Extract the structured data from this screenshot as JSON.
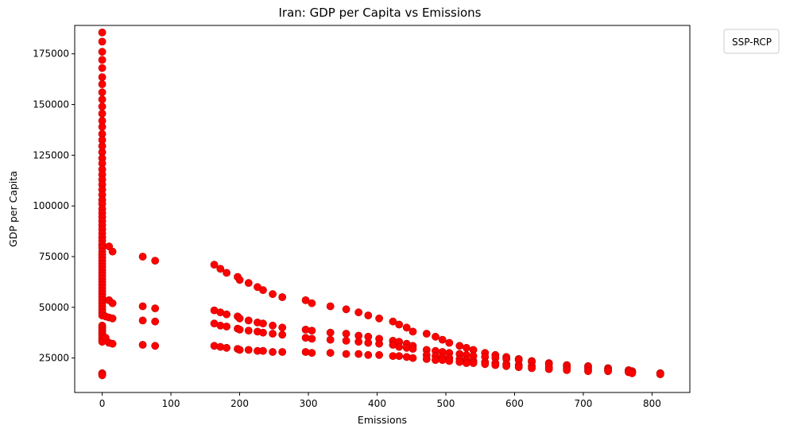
{
  "chart_data": {
    "type": "scatter",
    "title": "Iran: GDP per Capita vs Emissions",
    "xlabel": "Emissions",
    "ylabel": "GDP per Capita",
    "xlim": [
      -40,
      855
    ],
    "ylim": [
      8000,
      189000
    ],
    "x_ticks": [
      0,
      100,
      200,
      300,
      400,
      500,
      600,
      700,
      800
    ],
    "y_ticks": [
      25000,
      50000,
      75000,
      100000,
      125000,
      150000,
      175000
    ],
    "grid": false,
    "legend": {
      "title": "SSP-RCP",
      "placement": "outside-top-right"
    },
    "series": [
      {
        "color": "#ff0000",
        "points": [
          [
            0,
            185500
          ],
          [
            0,
            181000
          ],
          [
            0,
            176000
          ],
          [
            0,
            172000
          ],
          [
            0,
            168000
          ],
          [
            0,
            163500
          ],
          [
            0,
            160000
          ],
          [
            0,
            156000
          ],
          [
            0,
            152500
          ],
          [
            0,
            149000
          ],
          [
            0,
            145500
          ],
          [
            0,
            142000
          ],
          [
            0,
            139000
          ],
          [
            0,
            135500
          ],
          [
            0,
            132500
          ],
          [
            0,
            129500
          ],
          [
            0,
            126500
          ],
          [
            0,
            123500
          ],
          [
            0,
            121000
          ],
          [
            0,
            118000
          ],
          [
            0,
            115500
          ],
          [
            0,
            113000
          ],
          [
            0,
            110500
          ],
          [
            0,
            108000
          ],
          [
            0,
            105500
          ],
          [
            0,
            103000
          ],
          [
            0,
            101000
          ],
          [
            0,
            98500
          ],
          [
            0,
            96500
          ],
          [
            0,
            94500
          ],
          [
            0,
            92500
          ],
          [
            0,
            90500
          ],
          [
            0,
            88500
          ],
          [
            0,
            86500
          ],
          [
            0,
            84500
          ],
          [
            0,
            83000
          ],
          [
            0,
            81000
          ],
          [
            0,
            79500
          ],
          [
            0,
            77500
          ],
          [
            0,
            76000
          ],
          [
            0,
            74500
          ],
          [
            0,
            73000
          ],
          [
            0,
            71500
          ],
          [
            0,
            70000
          ],
          [
            0,
            68500
          ],
          [
            0,
            67000
          ],
          [
            0,
            65500
          ],
          [
            0,
            64000
          ],
          [
            0,
            62500
          ],
          [
            0,
            61000
          ],
          [
            0,
            59500
          ],
          [
            0,
            58000
          ],
          [
            0,
            56500
          ],
          [
            0,
            55000
          ],
          [
            0,
            53500
          ],
          [
            0,
            52000
          ],
          [
            0,
            50500
          ],
          [
            0,
            49000
          ],
          [
            0,
            47500
          ],
          [
            0,
            46000
          ],
          [
            0,
            41000
          ],
          [
            0,
            40000
          ],
          [
            0,
            39000
          ],
          [
            0,
            38000
          ],
          [
            0,
            37000
          ],
          [
            0,
            36000
          ],
          [
            0,
            35000
          ],
          [
            0,
            34000
          ],
          [
            0,
            33000
          ],
          [
            0,
            17500
          ],
          [
            0,
            17000
          ],
          [
            0,
            16500
          ],
          [
            5,
            35000
          ],
          [
            5,
            45500
          ],
          [
            10,
            80000
          ],
          [
            10,
            53500
          ],
          [
            10,
            45000
          ],
          [
            10,
            32500
          ],
          [
            15,
            77500
          ],
          [
            15,
            52000
          ],
          [
            15,
            44500
          ],
          [
            15,
            32000
          ],
          [
            59,
            75000
          ],
          [
            59,
            50500
          ],
          [
            59,
            43500
          ],
          [
            59,
            31500
          ],
          [
            77,
            73000
          ],
          [
            77,
            49500
          ],
          [
            77,
            43000
          ],
          [
            77,
            31000
          ],
          [
            163,
            71000
          ],
          [
            172,
            69000
          ],
          [
            181,
            67000
          ],
          [
            197,
            65000
          ],
          [
            200,
            63500
          ],
          [
            213,
            62000
          ],
          [
            226,
            60000
          ],
          [
            234,
            58500
          ],
          [
            248,
            56500
          ],
          [
            262,
            55000
          ],
          [
            163,
            48500
          ],
          [
            172,
            47500
          ],
          [
            181,
            46500
          ],
          [
            197,
            45500
          ],
          [
            200,
            44500
          ],
          [
            213,
            43500
          ],
          [
            226,
            42500
          ],
          [
            234,
            42000
          ],
          [
            248,
            41000
          ],
          [
            262,
            40000
          ],
          [
            163,
            42000
          ],
          [
            172,
            41000
          ],
          [
            181,
            40500
          ],
          [
            197,
            39500
          ],
          [
            200,
            39000
          ],
          [
            213,
            38500
          ],
          [
            226,
            38000
          ],
          [
            234,
            37500
          ],
          [
            248,
            37000
          ],
          [
            262,
            36500
          ],
          [
            163,
            31000
          ],
          [
            172,
            30500
          ],
          [
            181,
            30000
          ],
          [
            197,
            29500
          ],
          [
            200,
            29000
          ],
          [
            213,
            29000
          ],
          [
            226,
            28500
          ],
          [
            234,
            28500
          ],
          [
            248,
            28000
          ],
          [
            262,
            28000
          ],
          [
            296,
            53500
          ],
          [
            305,
            52000
          ],
          [
            332,
            50500
          ],
          [
            355,
            49000
          ],
          [
            373,
            47500
          ],
          [
            387,
            46000
          ],
          [
            403,
            44500
          ],
          [
            423,
            43000
          ],
          [
            432,
            41500
          ],
          [
            443,
            40000
          ],
          [
            452,
            38000
          ],
          [
            296,
            39000
          ],
          [
            305,
            38500
          ],
          [
            332,
            37500
          ],
          [
            355,
            37000
          ],
          [
            373,
            36000
          ],
          [
            387,
            35500
          ],
          [
            403,
            34500
          ],
          [
            423,
            33500
          ],
          [
            432,
            33000
          ],
          [
            443,
            32000
          ],
          [
            452,
            31000
          ],
          [
            296,
            35000
          ],
          [
            305,
            34500
          ],
          [
            332,
            34000
          ],
          [
            355,
            33500
          ],
          [
            373,
            33000
          ],
          [
            387,
            32500
          ],
          [
            403,
            32000
          ],
          [
            423,
            31500
          ],
          [
            432,
            30500
          ],
          [
            443,
            30000
          ],
          [
            452,
            29500
          ],
          [
            296,
            28000
          ],
          [
            305,
            27500
          ],
          [
            332,
            27500
          ],
          [
            355,
            27000
          ],
          [
            373,
            27000
          ],
          [
            387,
            26500
          ],
          [
            403,
            26500
          ],
          [
            423,
            26000
          ],
          [
            432,
            26000
          ],
          [
            443,
            25500
          ],
          [
            452,
            25000
          ],
          [
            472,
            37000
          ],
          [
            485,
            35500
          ],
          [
            495,
            34000
          ],
          [
            505,
            32500
          ],
          [
            520,
            31000
          ],
          [
            530,
            30000
          ],
          [
            540,
            29000
          ],
          [
            557,
            27500
          ],
          [
            572,
            26500
          ],
          [
            588,
            25500
          ],
          [
            606,
            24500
          ],
          [
            625,
            23500
          ],
          [
            650,
            22500
          ],
          [
            676,
            21500
          ],
          [
            707,
            21000
          ],
          [
            736,
            20000
          ],
          [
            766,
            19000
          ],
          [
            771,
            18500
          ],
          [
            812,
            17500
          ],
          [
            472,
            29000
          ],
          [
            485,
            28500
          ],
          [
            495,
            28000
          ],
          [
            505,
            27500
          ],
          [
            520,
            27000
          ],
          [
            530,
            26500
          ],
          [
            540,
            26000
          ],
          [
            557,
            25500
          ],
          [
            572,
            25000
          ],
          [
            588,
            24500
          ],
          [
            606,
            24000
          ],
          [
            625,
            23000
          ],
          [
            650,
            22000
          ],
          [
            676,
            21000
          ],
          [
            707,
            20500
          ],
          [
            736,
            19500
          ],
          [
            766,
            18500
          ],
          [
            771,
            18000
          ],
          [
            812,
            17500
          ],
          [
            472,
            26500
          ],
          [
            485,
            26000
          ],
          [
            495,
            25500
          ],
          [
            505,
            25000
          ],
          [
            520,
            24500
          ],
          [
            530,
            24000
          ],
          [
            540,
            23500
          ],
          [
            557,
            23000
          ],
          [
            572,
            22500
          ],
          [
            588,
            22000
          ],
          [
            606,
            21500
          ],
          [
            625,
            21000
          ],
          [
            650,
            20500
          ],
          [
            676,
            20000
          ],
          [
            707,
            19500
          ],
          [
            736,
            19000
          ],
          [
            766,
            18500
          ],
          [
            771,
            18000
          ],
          [
            812,
            17000
          ],
          [
            472,
            24500
          ],
          [
            485,
            24000
          ],
          [
            495,
            24000
          ],
          [
            505,
            23500
          ],
          [
            520,
            23000
          ],
          [
            530,
            22500
          ],
          [
            540,
            22500
          ],
          [
            557,
            22000
          ],
          [
            572,
            21500
          ],
          [
            588,
            21000
          ],
          [
            606,
            20500
          ],
          [
            625,
            20000
          ],
          [
            650,
            19500
          ],
          [
            676,
            19000
          ],
          [
            707,
            18500
          ],
          [
            736,
            18500
          ],
          [
            766,
            18000
          ],
          [
            771,
            17500
          ],
          [
            812,
            17000
          ]
        ]
      }
    ]
  }
}
